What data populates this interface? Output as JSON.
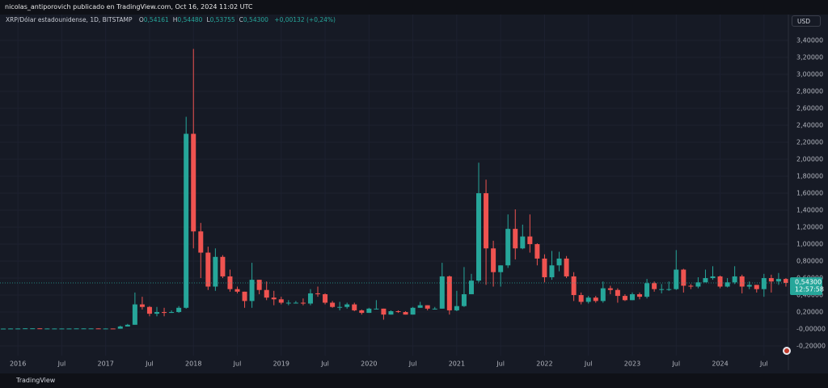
{
  "header": {
    "publisher": "nicolas_antiporovich publicado en TradingView.com, Oct 16, 2024 11:02 UTC"
  },
  "legend": {
    "symbol": "XRP/Dólar estadounidense, 1D, BITSTAMP",
    "ohlc": [
      {
        "key": "O",
        "value": "0,54161"
      },
      {
        "key": "H",
        "value": "0,54480"
      },
      {
        "key": "L",
        "value": "0,53755"
      },
      {
        "key": "C",
        "value": "0,54300"
      }
    ],
    "change": "+0,00132 (+0,24%)"
  },
  "currency_button": "USD",
  "footer": "TradingView",
  "chart_data": {
    "type": "candlestick",
    "up_color": "#26a69a",
    "down_color": "#ef5350",
    "grid": true,
    "x": [
      "2015-11",
      "2015-12",
      "2016-01",
      "2016-02",
      "2016-03",
      "2016-04",
      "2016-05",
      "2016-06",
      "2016-07",
      "2016-08",
      "2016-09",
      "2016-10",
      "2016-11",
      "2016-12",
      "2017-01",
      "2017-02",
      "2017-03",
      "2017-04",
      "2017-05",
      "2017-06",
      "2017-07",
      "2017-08",
      "2017-09",
      "2017-10",
      "2017-11",
      "2017-12",
      "2018-01",
      "2018-02",
      "2018-03",
      "2018-04",
      "2018-05",
      "2018-06",
      "2018-07",
      "2018-08",
      "2018-09",
      "2018-10",
      "2018-11",
      "2018-12",
      "2019-01",
      "2019-02",
      "2019-03",
      "2019-04",
      "2019-05",
      "2019-06",
      "2019-07",
      "2019-08",
      "2019-09",
      "2019-10",
      "2019-11",
      "2019-12",
      "2020-01",
      "2020-02",
      "2020-03",
      "2020-04",
      "2020-05",
      "2020-06",
      "2020-07",
      "2020-08",
      "2020-09",
      "2020-10",
      "2020-11",
      "2020-12",
      "2021-01",
      "2021-02",
      "2021-03",
      "2021-04",
      "2021-05",
      "2021-06",
      "2021-07",
      "2021-08",
      "2021-09",
      "2021-10",
      "2021-11",
      "2021-12",
      "2022-01",
      "2022-02",
      "2022-03",
      "2022-04",
      "2022-05",
      "2022-06",
      "2022-07",
      "2022-08",
      "2022-09",
      "2022-10",
      "2022-11",
      "2022-12",
      "2023-01",
      "2023-02",
      "2023-03",
      "2023-04",
      "2023-05",
      "2023-06",
      "2023-07",
      "2023-08",
      "2023-09",
      "2023-10",
      "2023-11",
      "2023-12",
      "2024-01",
      "2024-02",
      "2024-03",
      "2024-04",
      "2024-05",
      "2024-06",
      "2024-07",
      "2024-08",
      "2024-09",
      "2024-10"
    ],
    "open": [
      0.005,
      0.005,
      0.006,
      0.006,
      0.008,
      0.008,
      0.006,
      0.006,
      0.006,
      0.006,
      0.006,
      0.007,
      0.007,
      0.007,
      0.006,
      0.006,
      0.004,
      0.03,
      0.05,
      0.29,
      0.26,
      0.18,
      0.2,
      0.19,
      0.2,
      0.25,
      2.3,
      1.15,
      0.9,
      0.5,
      0.85,
      0.62,
      0.47,
      0.44,
      0.33,
      0.58,
      0.46,
      0.37,
      0.35,
      0.31,
      0.31,
      0.31,
      0.3,
      0.42,
      0.41,
      0.31,
      0.26,
      0.26,
      0.29,
      0.22,
      0.19,
      0.24,
      0.24,
      0.17,
      0.21,
      0.2,
      0.17,
      0.25,
      0.28,
      0.24,
      0.24,
      0.62,
      0.22,
      0.27,
      0.41,
      0.57,
      1.6,
      0.95,
      0.67,
      0.75,
      1.18,
      0.95,
      1.09,
      1.0,
      0.83,
      0.61,
      0.75,
      0.83,
      0.62,
      0.4,
      0.32,
      0.37,
      0.33,
      0.48,
      0.46,
      0.39,
      0.34,
      0.41,
      0.38,
      0.54,
      0.47,
      0.47,
      0.47,
      0.7,
      0.51,
      0.5,
      0.55,
      0.6,
      0.62,
      0.5,
      0.55,
      0.62,
      0.5,
      0.52,
      0.47,
      0.6,
      0.56,
      0.59
    ],
    "high": [
      0.006,
      0.007,
      0.007,
      0.009,
      0.009,
      0.008,
      0.007,
      0.007,
      0.007,
      0.007,
      0.007,
      0.008,
      0.008,
      0.008,
      0.008,
      0.006,
      0.04,
      0.06,
      0.43,
      0.38,
      0.27,
      0.26,
      0.25,
      0.22,
      0.27,
      2.5,
      3.3,
      1.25,
      0.97,
      0.95,
      0.87,
      0.7,
      0.5,
      0.44,
      0.78,
      0.58,
      0.56,
      0.45,
      0.38,
      0.34,
      0.33,
      0.36,
      0.47,
      0.5,
      0.42,
      0.33,
      0.32,
      0.31,
      0.31,
      0.23,
      0.25,
      0.34,
      0.24,
      0.22,
      0.22,
      0.21,
      0.26,
      0.32,
      0.28,
      0.26,
      0.78,
      0.63,
      0.45,
      0.73,
      0.65,
      1.96,
      1.76,
      1.04,
      0.75,
      1.35,
      1.41,
      1.23,
      1.35,
      1.01,
      0.88,
      0.92,
      0.91,
      0.86,
      0.67,
      0.43,
      0.39,
      0.39,
      0.56,
      0.51,
      0.48,
      0.41,
      0.43,
      0.43,
      0.59,
      0.56,
      0.53,
      0.56,
      0.93,
      0.71,
      0.53,
      0.61,
      0.7,
      0.74,
      0.63,
      0.6,
      0.74,
      0.64,
      0.56,
      0.52,
      0.65,
      0.64,
      0.66,
      0.6
    ],
    "low": [
      0.004,
      0.005,
      0.005,
      0.006,
      0.007,
      0.006,
      0.005,
      0.006,
      0.006,
      0.006,
      0.006,
      0.006,
      0.006,
      0.006,
      0.006,
      0.004,
      0.004,
      0.03,
      0.05,
      0.23,
      0.15,
      0.15,
      0.15,
      0.19,
      0.19,
      0.24,
      0.95,
      0.6,
      0.46,
      0.45,
      0.6,
      0.44,
      0.42,
      0.25,
      0.25,
      0.41,
      0.34,
      0.28,
      0.29,
      0.28,
      0.3,
      0.28,
      0.28,
      0.38,
      0.29,
      0.25,
      0.22,
      0.24,
      0.21,
      0.17,
      0.19,
      0.23,
      0.11,
      0.17,
      0.19,
      0.17,
      0.17,
      0.25,
      0.22,
      0.23,
      0.24,
      0.17,
      0.21,
      0.26,
      0.41,
      0.55,
      0.52,
      0.5,
      0.5,
      0.72,
      0.82,
      0.94,
      0.9,
      0.75,
      0.55,
      0.58,
      0.68,
      0.6,
      0.33,
      0.29,
      0.3,
      0.31,
      0.31,
      0.41,
      0.31,
      0.33,
      0.34,
      0.35,
      0.36,
      0.44,
      0.42,
      0.45,
      0.46,
      0.43,
      0.47,
      0.48,
      0.55,
      0.58,
      0.48,
      0.49,
      0.53,
      0.42,
      0.47,
      0.43,
      0.38,
      0.43,
      0.52,
      0.5
    ],
    "close": [
      0.005,
      0.006,
      0.006,
      0.008,
      0.008,
      0.006,
      0.006,
      0.006,
      0.006,
      0.006,
      0.007,
      0.007,
      0.007,
      0.006,
      0.006,
      0.004,
      0.03,
      0.05,
      0.29,
      0.26,
      0.18,
      0.2,
      0.19,
      0.2,
      0.25,
      2.3,
      1.15,
      0.9,
      0.5,
      0.85,
      0.62,
      0.47,
      0.44,
      0.33,
      0.58,
      0.46,
      0.37,
      0.35,
      0.31,
      0.31,
      0.31,
      0.3,
      0.42,
      0.41,
      0.31,
      0.26,
      0.26,
      0.29,
      0.22,
      0.19,
      0.24,
      0.24,
      0.17,
      0.21,
      0.2,
      0.17,
      0.25,
      0.28,
      0.24,
      0.24,
      0.62,
      0.22,
      0.27,
      0.41,
      0.57,
      1.6,
      0.95,
      0.67,
      0.75,
      1.18,
      0.95,
      1.09,
      1.0,
      0.83,
      0.61,
      0.75,
      0.83,
      0.62,
      0.4,
      0.32,
      0.37,
      0.33,
      0.48,
      0.46,
      0.39,
      0.34,
      0.41,
      0.38,
      0.54,
      0.47,
      0.47,
      0.47,
      0.7,
      0.51,
      0.5,
      0.55,
      0.6,
      0.62,
      0.5,
      0.55,
      0.62,
      0.5,
      0.52,
      0.47,
      0.6,
      0.56,
      0.59,
      0.543
    ],
    "xlim": [
      "2015-10",
      "2024-11"
    ],
    "xticks": [
      {
        "value": "2016-01",
        "label": "2016"
      },
      {
        "value": "2016-07",
        "label": "Jul"
      },
      {
        "value": "2017-01",
        "label": "2017"
      },
      {
        "value": "2017-07",
        "label": "Jul"
      },
      {
        "value": "2018-01",
        "label": "2018"
      },
      {
        "value": "2018-07",
        "label": "Jul"
      },
      {
        "value": "2019-01",
        "label": "2019"
      },
      {
        "value": "2019-07",
        "label": "Jul"
      },
      {
        "value": "2020-01",
        "label": "2020"
      },
      {
        "value": "2020-07",
        "label": "Jul"
      },
      {
        "value": "2021-01",
        "label": "2021"
      },
      {
        "value": "2021-07",
        "label": "Jul"
      },
      {
        "value": "2022-01",
        "label": "2022"
      },
      {
        "value": "2022-07",
        "label": "Jul"
      },
      {
        "value": "2023-01",
        "label": "2023"
      },
      {
        "value": "2023-07",
        "label": "Jul"
      },
      {
        "value": "2024-01",
        "label": "2024"
      },
      {
        "value": "2024-07",
        "label": "Jul"
      }
    ],
    "ylim": [
      -0.314,
      3.705
    ],
    "yticks": [
      {
        "value": -0.2,
        "label": "-0,20000"
      },
      {
        "value": 0,
        "label": "-0,00000"
      },
      {
        "value": 0.2,
        "label": "0,20000"
      },
      {
        "value": 0.4,
        "label": "0,40000"
      },
      {
        "value": 0.6,
        "label": "0,60000"
      },
      {
        "value": 0.8,
        "label": "0,80000"
      },
      {
        "value": 1,
        "label": "1,00000"
      },
      {
        "value": 1.2,
        "label": "1,20000"
      },
      {
        "value": 1.4,
        "label": "1,40000"
      },
      {
        "value": 1.6,
        "label": "1,60000"
      },
      {
        "value": 1.8,
        "label": "1,80000"
      },
      {
        "value": 2,
        "label": "2,00000"
      },
      {
        "value": 2.2,
        "label": "2,20000"
      },
      {
        "value": 2.4,
        "label": "2,40000"
      },
      {
        "value": 2.6,
        "label": "2,60000"
      },
      {
        "value": 2.8,
        "label": "2,80000"
      },
      {
        "value": 3,
        "label": "3,00000"
      },
      {
        "value": 3.2,
        "label": "3,20000"
      },
      {
        "value": 3.4,
        "label": "3,40000"
      }
    ],
    "last_price": {
      "value": 0.543,
      "label": "0,54300"
    },
    "countdown": "12:57:58"
  }
}
